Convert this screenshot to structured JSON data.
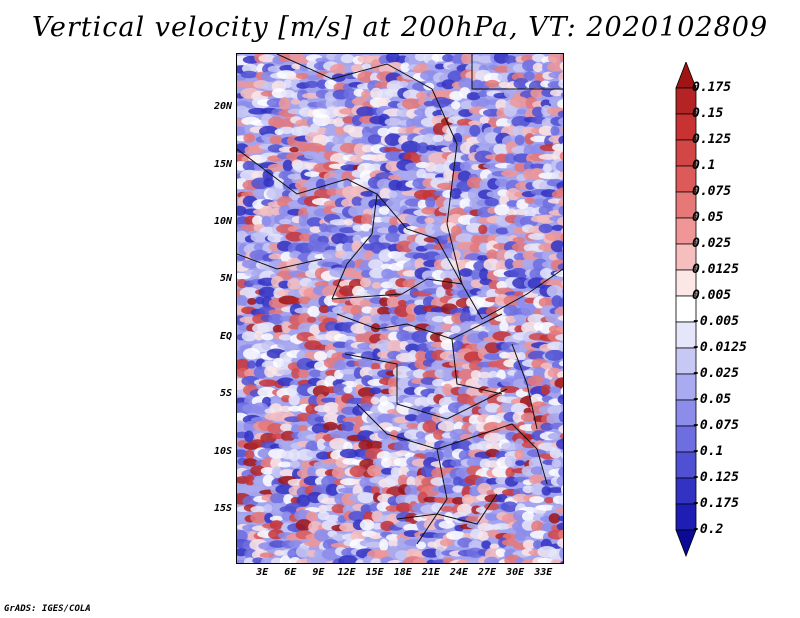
{
  "title": "Vertical velocity [m/s] at 200hPa, VT: 2020102809",
  "footer": "GrADS: IGES/COLA",
  "lat_ticks": [
    {
      "value": 20,
      "label": "20N"
    },
    {
      "value": 15,
      "label": "15N"
    },
    {
      "value": 10,
      "label": "10N"
    },
    {
      "value": 5,
      "label": "5N"
    },
    {
      "value": 0,
      "label": "EQ"
    },
    {
      "value": -5,
      "label": "5S"
    },
    {
      "value": -10,
      "label": "10S"
    },
    {
      "value": -15,
      "label": "15S"
    }
  ],
  "lon_ticks": [
    {
      "value": 3,
      "label": "3E"
    },
    {
      "value": 6,
      "label": "6E"
    },
    {
      "value": 9,
      "label": "9E"
    },
    {
      "value": 12,
      "label": "12E"
    },
    {
      "value": 15,
      "label": "15E"
    },
    {
      "value": 18,
      "label": "18E"
    },
    {
      "value": 21,
      "label": "21E"
    },
    {
      "value": 24,
      "label": "24E"
    },
    {
      "value": 27,
      "label": "27E"
    },
    {
      "value": 30,
      "label": "30E"
    },
    {
      "value": 33,
      "label": "33E"
    }
  ],
  "colorbar": {
    "labels": [
      "0.175",
      "0.15",
      "0.125",
      "0.1",
      "0.075",
      "0.05",
      "0.025",
      "0.0125",
      "0.005",
      "-0.005",
      "-0.0125",
      "-0.025",
      "-0.05",
      "-0.075",
      "-0.1",
      "-0.125",
      "-0.175",
      "-0.2"
    ],
    "colors": [
      "#a01414",
      "#b42424",
      "#c83232",
      "#d24646",
      "#dc5a5a",
      "#e67878",
      "#f09696",
      "#f7bebe",
      "#fce6e6",
      "#ffffff",
      "#e6e6fa",
      "#c8c8f5",
      "#aaaaf0",
      "#8c8ceb",
      "#6e6ee1",
      "#5050d2",
      "#3232c3",
      "#1e1eb4",
      "#0a0a96"
    ]
  }
}
